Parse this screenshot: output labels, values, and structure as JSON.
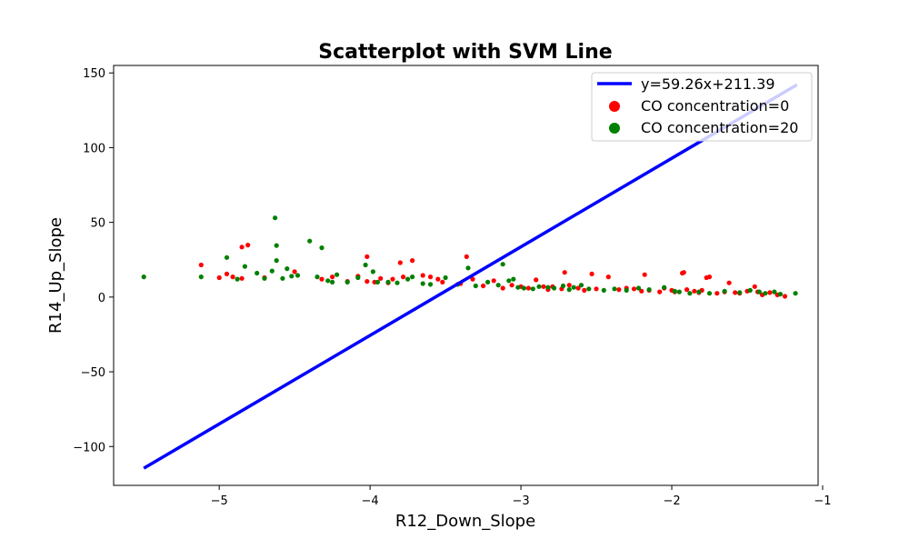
{
  "chart_data": {
    "type": "scatter",
    "title": "Scatterplot with SVM Line",
    "xlabel": "R12_Down_Slope",
    "ylabel": "R14_Up_Slope",
    "xlim": [
      -5.7,
      -1.03
    ],
    "ylim": [
      -126,
      155
    ],
    "xticks": [
      -5,
      -4,
      -3,
      -2,
      -1
    ],
    "yticks": [
      -100,
      -50,
      0,
      50,
      100,
      150
    ],
    "xtick_labels": [
      "−5",
      "−4",
      "−3",
      "−2",
      "−1"
    ],
    "ytick_labels": [
      "−100",
      "−50",
      "0",
      "50",
      "100",
      "150"
    ],
    "grid": false,
    "legend_position": "top-right",
    "line": {
      "label": "y=59.26x+211.39",
      "slope": 59.26,
      "intercept": 211.39,
      "x": [
        -5.5,
        -1.17
      ],
      "color": "#0000ff"
    },
    "series": [
      {
        "name": "CO concentration=0",
        "color": "#ff0000",
        "points": [
          [
            -5.12,
            21.5
          ],
          [
            -5.0,
            13.0
          ],
          [
            -4.95,
            15.5
          ],
          [
            -4.91,
            13.5
          ],
          [
            -4.85,
            33.5
          ],
          [
            -4.81,
            34.8
          ],
          [
            -4.85,
            12.5
          ],
          [
            -4.7,
            13.0
          ],
          [
            -4.5,
            17.0
          ],
          [
            -4.32,
            12.0
          ],
          [
            -4.25,
            13.5
          ],
          [
            -4.15,
            10.5
          ],
          [
            -4.08,
            14.0
          ],
          [
            -4.02,
            27.0
          ],
          [
            -4.02,
            10.5
          ],
          [
            -3.97,
            10.0
          ],
          [
            -3.93,
            12.5
          ],
          [
            -3.88,
            9.5
          ],
          [
            -3.85,
            12.0
          ],
          [
            -3.8,
            23.0
          ],
          [
            -3.78,
            13.5
          ],
          [
            -3.72,
            24.5
          ],
          [
            -3.65,
            14.5
          ],
          [
            -3.6,
            13.5
          ],
          [
            -3.55,
            12.0
          ],
          [
            -3.52,
            10.0
          ],
          [
            -3.4,
            9.0
          ],
          [
            -3.36,
            27.0
          ],
          [
            -3.32,
            12.0
          ],
          [
            -3.25,
            7.5
          ],
          [
            -3.18,
            11.0
          ],
          [
            -3.12,
            6.0
          ],
          [
            -3.06,
            8.0
          ],
          [
            -3.0,
            7.0
          ],
          [
            -2.95,
            6.0
          ],
          [
            -2.9,
            11.5
          ],
          [
            -2.85,
            7.0
          ],
          [
            -2.82,
            5.0
          ],
          [
            -2.79,
            7.0
          ],
          [
            -2.73,
            5.5
          ],
          [
            -2.71,
            16.5
          ],
          [
            -2.68,
            8.0
          ],
          [
            -2.62,
            6.0
          ],
          [
            -2.58,
            4.5
          ],
          [
            -2.53,
            15.5
          ],
          [
            -2.5,
            5.5
          ],
          [
            -2.42,
            13.5
          ],
          [
            -2.35,
            5.0
          ],
          [
            -2.3,
            6.0
          ],
          [
            -2.25,
            5.5
          ],
          [
            -2.2,
            4.0
          ],
          [
            -2.18,
            15.0
          ],
          [
            -2.15,
            4.5
          ],
          [
            -2.08,
            3.5
          ],
          [
            -2.05,
            6.0
          ],
          [
            -2.0,
            4.5
          ],
          [
            -1.98,
            3.5
          ],
          [
            -1.93,
            16.0
          ],
          [
            -1.92,
            16.5
          ],
          [
            -1.9,
            5.0
          ],
          [
            -1.85,
            4.0
          ],
          [
            -1.82,
            3.0
          ],
          [
            -1.8,
            4.5
          ],
          [
            -1.77,
            13.0
          ],
          [
            -1.75,
            13.5
          ],
          [
            -1.7,
            2.5
          ],
          [
            -1.65,
            3.5
          ],
          [
            -1.62,
            9.5
          ],
          [
            -1.58,
            3.0
          ],
          [
            -1.55,
            2.5
          ],
          [
            -1.5,
            4.0
          ],
          [
            -1.45,
            7.0
          ],
          [
            -1.43,
            3.5
          ],
          [
            -1.4,
            1.5
          ],
          [
            -1.35,
            3.0
          ],
          [
            -1.3,
            1.5
          ],
          [
            -1.25,
            0.5
          ]
        ]
      },
      {
        "name": "CO concentration=20",
        "color": "#008000",
        "points": [
          [
            -5.5,
            13.5
          ],
          [
            -5.12,
            13.5
          ],
          [
            -4.95,
            26.5
          ],
          [
            -4.88,
            12.0
          ],
          [
            -4.83,
            20.5
          ],
          [
            -4.75,
            16.0
          ],
          [
            -4.7,
            12.5
          ],
          [
            -4.65,
            17.5
          ],
          [
            -4.63,
            53.0
          ],
          [
            -4.62,
            34.5
          ],
          [
            -4.62,
            24.5
          ],
          [
            -4.58,
            12.5
          ],
          [
            -4.55,
            19.0
          ],
          [
            -4.52,
            14.0
          ],
          [
            -4.48,
            14.5
          ],
          [
            -4.4,
            37.5
          ],
          [
            -4.35,
            13.5
          ],
          [
            -4.32,
            33.0
          ],
          [
            -4.28,
            11.0
          ],
          [
            -4.25,
            10.0
          ],
          [
            -4.22,
            15.0
          ],
          [
            -4.15,
            10.0
          ],
          [
            -4.08,
            13.0
          ],
          [
            -4.03,
            21.5
          ],
          [
            -3.98,
            17.0
          ],
          [
            -3.95,
            10.0
          ],
          [
            -3.88,
            10.0
          ],
          [
            -3.82,
            9.5
          ],
          [
            -3.75,
            12.0
          ],
          [
            -3.72,
            13.5
          ],
          [
            -3.65,
            9.0
          ],
          [
            -3.6,
            8.5
          ],
          [
            -3.5,
            13.0
          ],
          [
            -3.42,
            8.5
          ],
          [
            -3.35,
            19.5
          ],
          [
            -3.3,
            7.5
          ],
          [
            -3.22,
            10.0
          ],
          [
            -3.15,
            8.0
          ],
          [
            -3.12,
            22.0
          ],
          [
            -3.08,
            11.0
          ],
          [
            -3.05,
            12.0
          ],
          [
            -3.02,
            6.5
          ],
          [
            -2.98,
            6.0
          ],
          [
            -2.92,
            5.5
          ],
          [
            -2.88,
            7.0
          ],
          [
            -2.82,
            6.5
          ],
          [
            -2.78,
            6.0
          ],
          [
            -2.72,
            7.5
          ],
          [
            -2.68,
            5.0
          ],
          [
            -2.65,
            6.5
          ],
          [
            -2.6,
            8.0
          ],
          [
            -2.55,
            5.5
          ],
          [
            -2.45,
            4.5
          ],
          [
            -2.38,
            5.5
          ],
          [
            -2.3,
            4.5
          ],
          [
            -2.22,
            6.0
          ],
          [
            -2.15,
            5.0
          ],
          [
            -2.05,
            6.5
          ],
          [
            -1.98,
            4.0
          ],
          [
            -1.95,
            3.5
          ],
          [
            -1.88,
            2.5
          ],
          [
            -1.82,
            3.5
          ],
          [
            -1.75,
            2.5
          ],
          [
            -1.65,
            4.0
          ],
          [
            -1.55,
            3.0
          ],
          [
            -1.48,
            4.5
          ],
          [
            -1.42,
            3.5
          ],
          [
            -1.38,
            2.5
          ],
          [
            -1.32,
            3.5
          ],
          [
            -1.28,
            2.0
          ],
          [
            -1.18,
            2.5
          ]
        ]
      }
    ]
  }
}
